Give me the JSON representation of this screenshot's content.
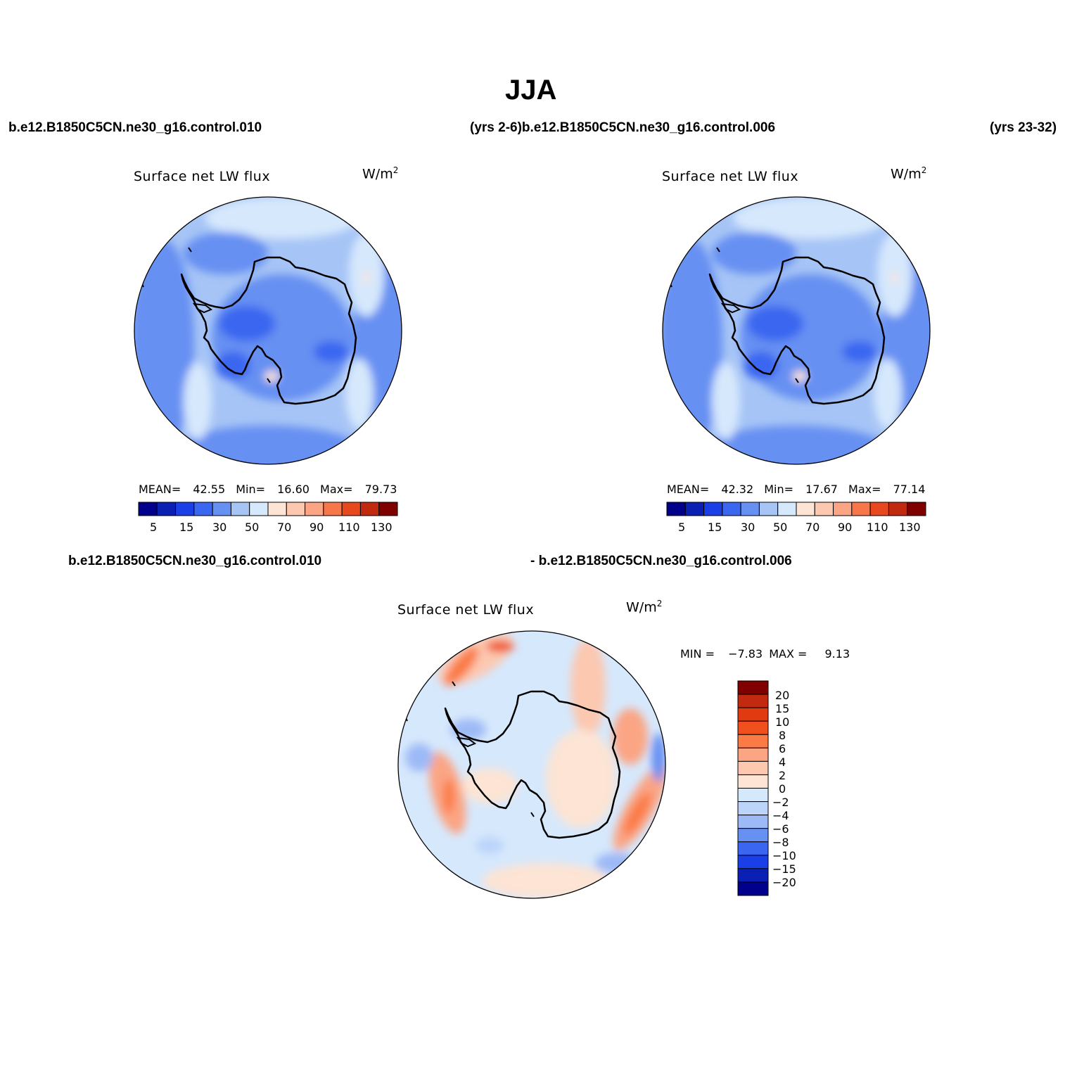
{
  "page_title": "JJA",
  "headers": {
    "top_left_case": "b.e12.B1850C5CN.ne30_g16.control.010",
    "top_mid": "(yrs 2-6)b.e12.B1850C5CN.ne30_g16.control.006",
    "top_right": "(yrs 23-32)",
    "bottom_left_case": "b.e12.B1850C5CN.ne30_g16.control.010",
    "bottom_right_case": "- b.e12.B1850C5CN.ne30_g16.control.006"
  },
  "panels": [
    {
      "variable": "Surface net LW flux",
      "units": "W/m",
      "units_sup": "2",
      "stats": {
        "mean_label": "MEAN=",
        "mean": "42.55",
        "min_label": "Min=",
        "min": "16.60",
        "max_label": "Max=",
        "max": "79.73"
      }
    },
    {
      "variable": "Surface net LW flux",
      "units": "W/m",
      "units_sup": "2",
      "stats": {
        "mean_label": "MEAN=",
        "mean": "42.32",
        "min_label": "Min=",
        "min": "17.67",
        "max_label": "Max=",
        "max": "77.14"
      }
    },
    {
      "variable": "Surface net LW flux",
      "units": "W/m",
      "units_sup": "2",
      "stats": {
        "min_label": "MIN =",
        "min": "−7.83",
        "max_label": "MAX =",
        "max": "9.13"
      }
    }
  ],
  "colorbar_field": {
    "colors": [
      "#00008a",
      "#0a20b4",
      "#1a3fe6",
      "#3a66f0",
      "#6690f2",
      "#a6c4f6",
      "#d6e8fc",
      "#fde4d4",
      "#fcc8b0",
      "#fba584",
      "#f8774a",
      "#e8481e",
      "#c22a10",
      "#800000"
    ],
    "labels": [
      "5",
      "15",
      "30",
      "50",
      "70",
      "90",
      "110",
      "130"
    ]
  },
  "colorbar_diff": {
    "colors_top_to_bottom": [
      "#800000",
      "#c22a10",
      "#e23a10",
      "#f0501e",
      "#fb7a45",
      "#fba584",
      "#fcc8b0",
      "#fde4d4",
      "#d6e8fc",
      "#bcd4fa",
      "#9dbaf6",
      "#6690f2",
      "#3a66f0",
      "#1a3fe6",
      "#0a20b4",
      "#00008a"
    ],
    "labels_top_to_bottom": [
      "20",
      "15",
      "10",
      "8",
      "6",
      "4",
      "2",
      "0",
      "−2",
      "−4",
      "−6",
      "−8",
      "−10",
      "−15",
      "−20"
    ]
  }
}
